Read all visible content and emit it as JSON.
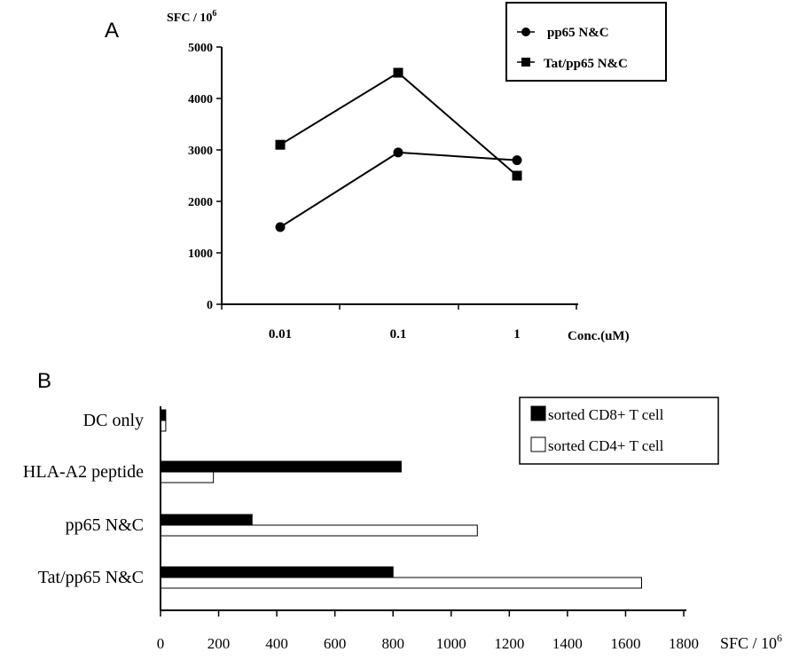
{
  "chart_data": [
    {
      "panel_label": "A",
      "type": "line",
      "ylabel": "SFC / 10",
      "ylabel_superscript": "6",
      "xlabel": "Conc.(uM)",
      "categories": [
        "0.01",
        "0.1",
        "1"
      ],
      "ylim": [
        0,
        5000
      ],
      "yticks": [
        "0",
        "1000",
        "2000",
        "3000",
        "4000",
        "5000"
      ],
      "series": [
        {
          "name": "pp65 N&C",
          "marker": "circle",
          "values": [
            1500,
            2950,
            2800
          ]
        },
        {
          "name": "Tat/pp65 N&C",
          "marker": "square",
          "values": [
            3100,
            4500,
            2500
          ]
        }
      ],
      "legend_position": "top-right",
      "grid": false
    },
    {
      "panel_label": "B",
      "type": "bar",
      "orientation": "horizontal",
      "categories": [
        "DC only",
        "HLA-A2 peptide",
        "pp65 N&C",
        "Tat/pp65 N&C"
      ],
      "series": [
        {
          "name": "sorted CD8+ T cell",
          "color": "#000000",
          "values": [
            18,
            828,
            315,
            800
          ]
        },
        {
          "name": "sorted CD4+ T cell",
          "color": "#ffffff",
          "values": [
            18,
            182,
            1090,
            1655
          ]
        }
      ],
      "xlabel": "SFC / 10",
      "xlabel_superscript": "6",
      "xlim": [
        0,
        1800
      ],
      "xticks": [
        "0",
        "200",
        "400",
        "600",
        "800",
        "1000",
        "1200",
        "1400",
        "1600",
        "1800"
      ],
      "legend_position": "top-right",
      "grid": false
    }
  ]
}
